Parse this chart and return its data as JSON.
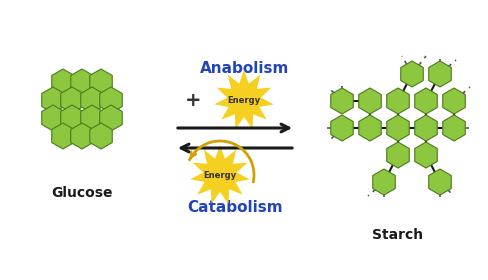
{
  "bg_color": "#ffffff",
  "glucose_color": "#8dc63f",
  "glucose_edge_color": "#4a7c1f",
  "starch_color": "#8dc63f",
  "starch_edge_color": "#4a7c1f",
  "starch_line_color": "#1a1a1a",
  "arrow_color": "#1a1a1a",
  "anabolism_color": "#2244bb",
  "catabolism_color": "#2244bb",
  "energy_bg_color": "#f5d020",
  "energy_text_color": "#333333",
  "curve_arrow_color": "#d4a000",
  "plus_color": "#333333",
  "label_color": "#1a1a1a",
  "glucose_label": "Glucose",
  "starch_label": "Starch",
  "anabolism_label": "Anabolism",
  "catabolism_label": "Catabolism",
  "energy_label": "Energy"
}
